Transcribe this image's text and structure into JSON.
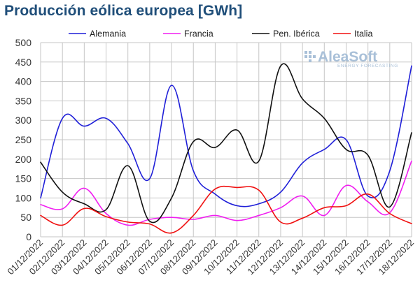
{
  "chart_data": {
    "type": "line",
    "title": "Producción eólica europea [GWh]",
    "categories": [
      "01/12/2022",
      "02/12/2022",
      "03/12/2022",
      "04/12/2022",
      "05/12/2022",
      "06/12/2022",
      "07/12/2022",
      "08/12/2022",
      "09/12/2022",
      "10/12/2022",
      "11/12/2022",
      "12/12/2022",
      "13/12/2022",
      "14/12/2022",
      "15/12/2022",
      "16/12/2022",
      "17/12/2022",
      "18/12/2022"
    ],
    "ylim": [
      0,
      500
    ],
    "yticks": [
      0,
      50,
      100,
      150,
      200,
      250,
      300,
      350,
      400,
      450,
      500
    ],
    "grid": true,
    "legend_position": "top",
    "series": [
      {
        "name": "Alemania",
        "color": "#1f1fd8",
        "values": [
          100,
          305,
          285,
          305,
          240,
          150,
          390,
          170,
          110,
          80,
          85,
          115,
          190,
          225,
          250,
          105,
          170,
          440
        ]
      },
      {
        "name": "Francia",
        "color": "#f01ef0",
        "values": [
          83,
          72,
          125,
          60,
          30,
          45,
          50,
          45,
          55,
          42,
          55,
          75,
          105,
          55,
          132,
          90,
          62,
          195
        ]
      },
      {
        "name": "Pen. Ibérica",
        "color": "#111111",
        "values": [
          192,
          115,
          85,
          70,
          183,
          40,
          100,
          245,
          230,
          275,
          195,
          440,
          355,
          305,
          225,
          210,
          77,
          268
        ]
      },
      {
        "name": "Italia",
        "color": "#f01010",
        "values": [
          55,
          30,
          73,
          52,
          38,
          33,
          10,
          55,
          123,
          127,
          120,
          38,
          48,
          75,
          80,
          110,
          60,
          34
        ]
      }
    ]
  },
  "logo": {
    "name": "AleaSoft",
    "tagline": "ENERGY FORECASTING"
  }
}
